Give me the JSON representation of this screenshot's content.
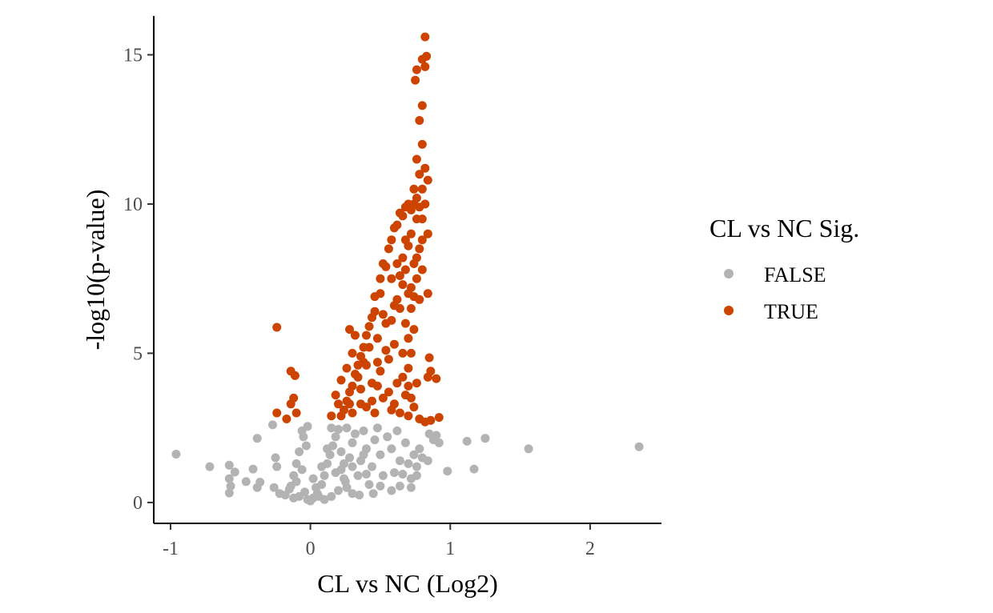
{
  "chart_data": {
    "type": "scatter",
    "title": "",
    "xlabel": "CL vs NC (Log2)",
    "ylabel": "-log10(p-value)",
    "xlim": [
      -1.12,
      2.51
    ],
    "ylim": [
      -0.7,
      16.3
    ],
    "xticks": [
      -1,
      0,
      1,
      2
    ],
    "xtick_labels": [
      "-1",
      "0",
      "1",
      "2"
    ],
    "yticks": [
      0,
      5,
      10,
      15
    ],
    "ytick_labels": [
      "0",
      "5",
      "10",
      "15"
    ],
    "grid": false,
    "legend": {
      "title": "CL vs NC Sig.",
      "placement": "right",
      "entries": [
        {
          "label": "FALSE",
          "color": "#b3b3b3"
        },
        {
          "label": "TRUE",
          "color": "#cc4400"
        }
      ]
    },
    "series": [
      {
        "name": "FALSE",
        "color": "#b3b3b3",
        "points": [
          [
            -0.96,
            1.62
          ],
          [
            -0.72,
            1.2
          ],
          [
            -0.58,
            1.25
          ],
          [
            -0.54,
            1.02
          ],
          [
            -0.58,
            0.8
          ],
          [
            -0.57,
            0.55
          ],
          [
            -0.58,
            0.32
          ],
          [
            -0.46,
            0.7
          ],
          [
            -0.41,
            1.12
          ],
          [
            -0.38,
            2.15
          ],
          [
            -0.36,
            0.68
          ],
          [
            -0.38,
            0.5
          ],
          [
            -0.27,
            2.6
          ],
          [
            -0.25,
            1.5
          ],
          [
            -0.24,
            1.2
          ],
          [
            -0.26,
            0.5
          ],
          [
            -0.22,
            0.3
          ],
          [
            -0.18,
            0.25
          ],
          [
            -0.14,
            0.55
          ],
          [
            -0.12,
            0.9
          ],
          [
            -0.1,
            1.3
          ],
          [
            -0.08,
            1.7
          ],
          [
            -0.05,
            2.2
          ],
          [
            -0.06,
            2.4
          ],
          [
            -0.02,
            2.55
          ],
          [
            -0.03,
            1.9
          ],
          [
            -0.06,
            1.1
          ],
          [
            -0.1,
            0.7
          ],
          [
            -0.04,
            0.35
          ],
          [
            0.0,
            0.05
          ],
          [
            0.02,
            0.15
          ],
          [
            0.05,
            0.3
          ],
          [
            0.08,
            0.6
          ],
          [
            0.06,
            0.2
          ],
          [
            -0.02,
            0.1
          ],
          [
            0.1,
            0.9
          ],
          [
            0.12,
            1.3
          ],
          [
            0.14,
            1.6
          ],
          [
            0.16,
            1.9
          ],
          [
            0.18,
            2.2
          ],
          [
            0.2,
            2.45
          ],
          [
            0.22,
            1.1
          ],
          [
            0.24,
            0.8
          ],
          [
            0.26,
            0.5
          ],
          [
            0.28,
            1.5
          ],
          [
            0.3,
            2.0
          ],
          [
            0.32,
            2.3
          ],
          [
            0.3,
            0.3
          ],
          [
            0.34,
            0.9
          ],
          [
            0.36,
            1.4
          ],
          [
            0.38,
            2.4
          ],
          [
            0.4,
            1.8
          ],
          [
            0.42,
            0.6
          ],
          [
            0.44,
            1.2
          ],
          [
            0.46,
            2.1
          ],
          [
            0.48,
            2.5
          ],
          [
            0.5,
            1.6
          ],
          [
            0.52,
            0.9
          ],
          [
            0.55,
            2.2
          ],
          [
            0.58,
            1.8
          ],
          [
            0.6,
            1.0
          ],
          [
            0.62,
            2.4
          ],
          [
            0.64,
            1.4
          ],
          [
            0.58,
            0.4
          ],
          [
            0.66,
            0.95
          ],
          [
            0.68,
            2.0
          ],
          [
            0.7,
            1.3
          ],
          [
            0.72,
            0.8
          ],
          [
            0.74,
            1.6
          ],
          [
            0.76,
            1.2
          ],
          [
            0.8,
            1.5
          ],
          [
            0.85,
            2.3
          ],
          [
            0.88,
            2.1
          ],
          [
            0.9,
            2.25
          ],
          [
            0.98,
            1.05
          ],
          [
            1.12,
            2.05
          ],
          [
            1.17,
            1.12
          ],
          [
            1.25,
            2.15
          ],
          [
            1.56,
            1.8
          ],
          [
            2.35,
            1.87
          ],
          [
            0.15,
            0.2
          ],
          [
            0.2,
            0.4
          ],
          [
            0.25,
            0.7
          ],
          [
            0.35,
            0.25
          ],
          [
            0.45,
            0.3
          ],
          [
            0.1,
            0.1
          ],
          [
            0.04,
            0.5
          ],
          [
            0.08,
            1.2
          ],
          [
            0.12,
            1.8
          ],
          [
            0.26,
            2.5
          ],
          [
            0.18,
            1.0
          ],
          [
            0.22,
            1.7
          ],
          [
            -0.08,
            0.2
          ],
          [
            -0.12,
            0.15
          ],
          [
            -0.15,
            0.45
          ],
          [
            0.02,
            0.8
          ],
          [
            0.15,
            2.5
          ],
          [
            0.3,
            1.2
          ],
          [
            0.4,
            0.95
          ],
          [
            0.5,
            0.55
          ],
          [
            0.64,
            0.55
          ],
          [
            0.72,
            0.5
          ],
          [
            0.76,
            0.9
          ],
          [
            0.78,
            1.8
          ],
          [
            0.84,
            1.4
          ],
          [
            0.92,
            2.0
          ],
          [
            0.38,
            1.6
          ],
          [
            0.24,
            1.3
          ]
        ]
      },
      {
        "name": "TRUE",
        "color": "#cc4400",
        "points": [
          [
            -0.24,
            5.87
          ],
          [
            -0.14,
            4.4
          ],
          [
            -0.11,
            4.25
          ],
          [
            -0.14,
            3.3
          ],
          [
            -0.12,
            3.5
          ],
          [
            -0.1,
            3.0
          ],
          [
            -0.24,
            3.0
          ],
          [
            -0.17,
            2.8
          ],
          [
            0.15,
            2.9
          ],
          [
            0.18,
            3.6
          ],
          [
            0.22,
            4.1
          ],
          [
            0.26,
            4.5
          ],
          [
            0.28,
            3.3
          ],
          [
            0.3,
            5.0
          ],
          [
            0.32,
            5.6
          ],
          [
            0.3,
            3.0
          ],
          [
            0.34,
            4.2
          ],
          [
            0.36,
            3.8
          ],
          [
            0.38,
            4.7
          ],
          [
            0.4,
            3.2
          ],
          [
            0.42,
            5.2
          ],
          [
            0.44,
            4.0
          ],
          [
            0.46,
            6.4
          ],
          [
            0.46,
            3.0
          ],
          [
            0.48,
            5.5
          ],
          [
            0.5,
            7.0
          ],
          [
            0.5,
            4.4
          ],
          [
            0.52,
            8.0
          ],
          [
            0.52,
            3.5
          ],
          [
            0.54,
            6.0
          ],
          [
            0.56,
            8.5
          ],
          [
            0.56,
            4.8
          ],
          [
            0.58,
            7.5
          ],
          [
            0.58,
            3.1
          ],
          [
            0.6,
            9.2
          ],
          [
            0.6,
            5.3
          ],
          [
            0.62,
            8.0
          ],
          [
            0.62,
            4.0
          ],
          [
            0.64,
            9.7
          ],
          [
            0.64,
            6.5
          ],
          [
            0.64,
            3.0
          ],
          [
            0.66,
            7.3
          ],
          [
            0.66,
            5.0
          ],
          [
            0.68,
            8.8
          ],
          [
            0.68,
            6.0
          ],
          [
            0.68,
            3.6
          ],
          [
            0.7,
            10.0
          ],
          [
            0.7,
            7.0
          ],
          [
            0.7,
            4.5
          ],
          [
            0.7,
            2.9
          ],
          [
            0.72,
            9.0
          ],
          [
            0.72,
            6.5
          ],
          [
            0.72,
            5.0
          ],
          [
            0.74,
            10.5
          ],
          [
            0.74,
            8.0
          ],
          [
            0.74,
            5.8
          ],
          [
            0.74,
            3.2
          ],
          [
            0.76,
            11.5
          ],
          [
            0.76,
            9.5
          ],
          [
            0.76,
            7.5
          ],
          [
            0.76,
            4.0
          ],
          [
            0.78,
            12.8
          ],
          [
            0.78,
            11.0
          ],
          [
            0.78,
            8.5
          ],
          [
            0.78,
            6.8
          ],
          [
            0.78,
            2.8
          ],
          [
            0.8,
            13.3
          ],
          [
            0.8,
            12.0
          ],
          [
            0.8,
            10.5
          ],
          [
            0.8,
            9.5
          ],
          [
            0.8,
            7.8
          ],
          [
            0.82,
            15.6
          ],
          [
            0.82,
            14.6
          ],
          [
            0.83,
            14.95
          ],
          [
            0.8,
            14.85
          ],
          [
            0.75,
            14.15
          ],
          [
            0.76,
            14.5
          ],
          [
            0.82,
            11.2
          ],
          [
            0.82,
            10.0
          ],
          [
            0.84,
            10.8
          ],
          [
            0.84,
            9.0
          ],
          [
            0.84,
            7.0
          ],
          [
            0.85,
            4.85
          ],
          [
            0.86,
            4.4
          ],
          [
            0.84,
            4.2
          ],
          [
            0.9,
            4.15
          ],
          [
            0.92,
            2.85
          ],
          [
            0.86,
            2.75
          ],
          [
            0.82,
            2.7
          ],
          [
            0.74,
            10.0
          ],
          [
            0.76,
            10.2
          ],
          [
            0.72,
            9.8
          ],
          [
            0.68,
            9.9
          ],
          [
            0.66,
            9.6
          ],
          [
            0.62,
            9.3
          ],
          [
            0.58,
            8.8
          ],
          [
            0.54,
            7.9
          ],
          [
            0.5,
            7.5
          ],
          [
            0.46,
            6.9
          ],
          [
            0.44,
            6.2
          ],
          [
            0.42,
            5.9
          ],
          [
            0.4,
            5.6
          ],
          [
            0.38,
            5.2
          ],
          [
            0.36,
            4.9
          ],
          [
            0.34,
            4.6
          ],
          [
            0.32,
            4.3
          ],
          [
            0.3,
            3.9
          ],
          [
            0.28,
            3.7
          ],
          [
            0.26,
            3.4
          ],
          [
            0.24,
            3.1
          ],
          [
            0.22,
            2.9
          ],
          [
            0.2,
            3.3
          ],
          [
            0.28,
            5.8
          ],
          [
            0.4,
            4.6
          ],
          [
            0.48,
            3.9
          ],
          [
            0.56,
            3.7
          ],
          [
            0.6,
            3.3
          ],
          [
            0.66,
            4.2
          ],
          [
            0.7,
            3.9
          ],
          [
            0.72,
            3.5
          ],
          [
            0.62,
            6.8
          ],
          [
            0.64,
            7.6
          ],
          [
            0.66,
            8.2
          ],
          [
            0.68,
            7.8
          ],
          [
            0.7,
            8.6
          ],
          [
            0.72,
            7.2
          ],
          [
            0.54,
            5.1
          ],
          [
            0.52,
            6.3
          ],
          [
            0.48,
            4.7
          ],
          [
            0.44,
            3.4
          ],
          [
            0.36,
            3.3
          ],
          [
            0.58,
            6.1
          ],
          [
            0.6,
            6.6
          ],
          [
            0.78,
            9.9
          ],
          [
            0.8,
            8.8
          ],
          [
            0.76,
            8.2
          ],
          [
            0.74,
            6.9
          ],
          [
            0.7,
            5.5
          ]
        ]
      }
    ]
  }
}
